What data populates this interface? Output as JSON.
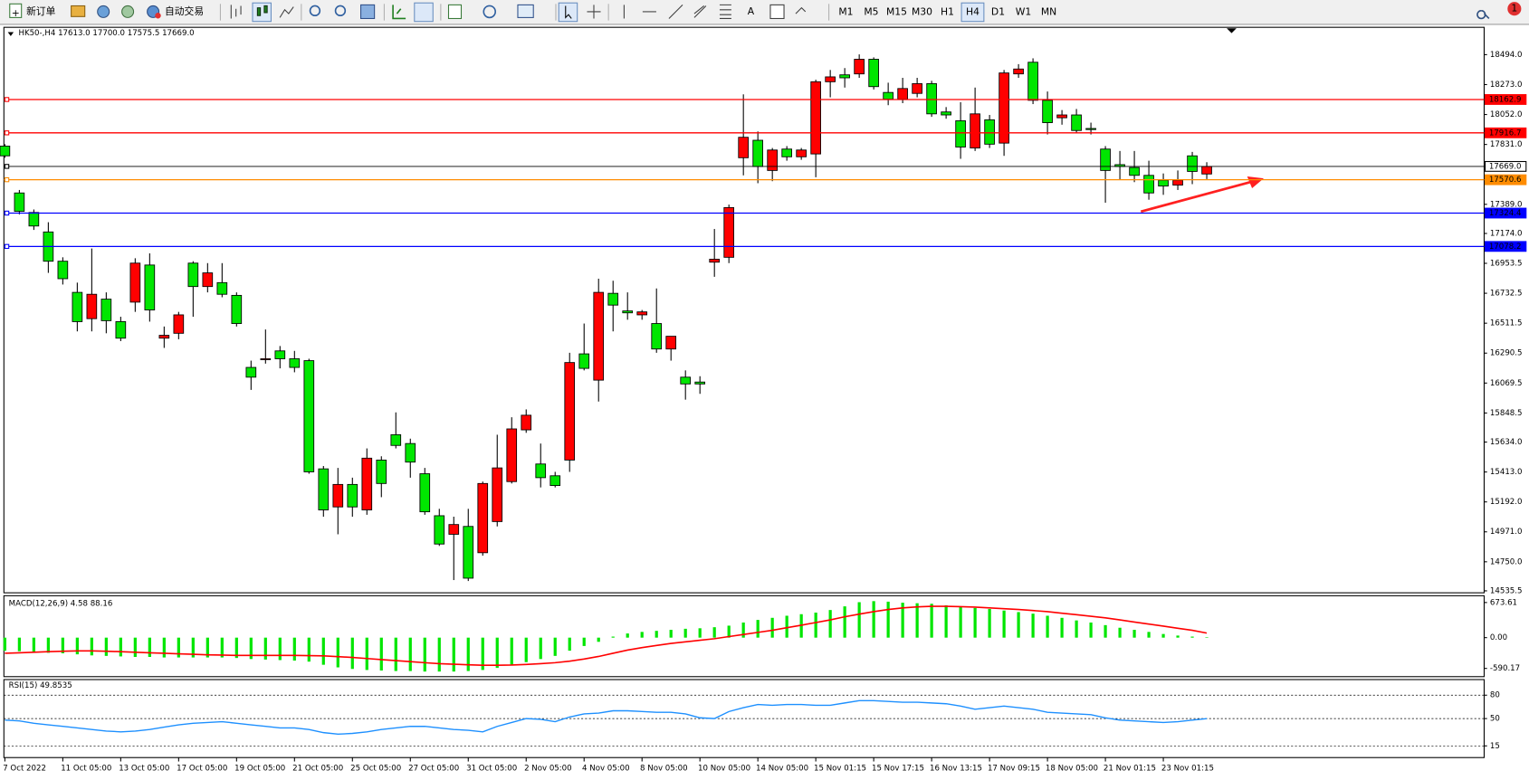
{
  "toolbar": {
    "new_order": "新订单",
    "auto_trading": "自动交易",
    "timeframes": [
      "M1",
      "M5",
      "M15",
      "M30",
      "H1",
      "H4",
      "D1",
      "W1",
      "MN"
    ],
    "active_timeframe": "H4",
    "notifications": 1
  },
  "chart_data": [
    {
      "type": "candlestick",
      "title": "HK50-,H4  17613.0 17700.0 17575.5 17669.0",
      "categories": [
        "7 Oct 2022",
        null,
        null,
        null,
        "11 Oct 05:00",
        null,
        null,
        null,
        "13 Oct 05:00",
        null,
        null,
        null,
        "17 Oct 05:00",
        null,
        null,
        null,
        "19 Oct 05:00",
        null,
        null,
        null,
        "21 Oct 05:00",
        null,
        null,
        null,
        "25 Oct 05:00",
        null,
        null,
        null,
        "27 Oct 05:00",
        null,
        null,
        null,
        "31 Oct 05:00",
        null,
        null,
        null,
        "2 Nov 05:00",
        null,
        null,
        null,
        "4 Nov 05:00",
        null,
        null,
        null,
        "8 Nov 05:00",
        null,
        null,
        null,
        "10 Nov 05:00",
        null,
        null,
        null,
        "14 Nov 05:00",
        null,
        null,
        null,
        "15 Nov 01:15",
        null,
        null,
        null,
        "15 Nov 17:15",
        null,
        null,
        null,
        "16 Nov 13:15",
        null,
        null,
        null,
        "17 Nov 09:15",
        null,
        null,
        null,
        "18 Nov 05:00",
        null,
        null,
        null,
        "21 Nov 01:15",
        null,
        null,
        null,
        "23 Nov 01:15",
        null,
        null,
        null
      ],
      "open": [
        17819,
        17473,
        17329,
        17185,
        16969,
        16739,
        16545,
        16689,
        16523,
        16667,
        16941,
        16401,
        16437,
        16955,
        16782,
        16811,
        16717,
        16185,
        16242,
        16307,
        16249,
        16235,
        15436,
        15155,
        15321,
        15133,
        15501,
        15688,
        15623,
        15400,
        15090,
        14953,
        15011,
        14817,
        15047,
        15342,
        15724,
        15472,
        15385,
        15501,
        16285,
        16091,
        16732,
        16602,
        16573,
        16509,
        16321,
        16113,
        16077,
        16962,
        16998,
        17733,
        17862,
        17639,
        17797,
        17740,
        17761,
        18294,
        18345,
        18352,
        18460,
        18215,
        18165,
        18208,
        18280,
        18071,
        18006,
        17805,
        18013,
        17841,
        18352,
        18438,
        18157,
        18028,
        18049,
        17949,
        17797,
        17682,
        17661,
        17603,
        17567,
        17531,
        17747,
        17613
      ],
      "high": [
        17833,
        17495,
        17351,
        17257,
        16998,
        16811,
        17063,
        16739,
        16559,
        16991,
        17027,
        16487,
        16595,
        16969,
        16955,
        16955,
        16739,
        16235,
        16465,
        16343,
        16307,
        16249,
        15457,
        15443,
        15371,
        15587,
        15529,
        15853,
        15659,
        15443,
        15141,
        15083,
        15141,
        15342,
        15688,
        15817,
        15875,
        15623,
        15414,
        16293,
        16509,
        16840,
        16825,
        16739,
        16609,
        16768,
        16415,
        16163,
        16120,
        17207,
        17387,
        18201,
        17927,
        17805,
        17819,
        17805,
        18309,
        18381,
        18395,
        18496,
        18474,
        18287,
        18323,
        18323,
        18301,
        18107,
        18143,
        18251,
        18049,
        18381,
        18424,
        18467,
        18222,
        18085,
        18093,
        17992,
        17819,
        17783,
        17783,
        17711,
        17617,
        17639,
        17776,
        17700
      ],
      "low": [
        17733,
        17315,
        17200,
        16883,
        16797,
        16451,
        16451,
        16437,
        16379,
        16595,
        16523,
        16329,
        16393,
        16559,
        16739,
        16703,
        16487,
        16019,
        16213,
        16178,
        16149,
        15400,
        15083,
        14953,
        15083,
        15097,
        15227,
        15587,
        15371,
        15097,
        14867,
        14615,
        14608,
        14795,
        15011,
        15328,
        15702,
        15299,
        15299,
        15414,
        16163,
        15933,
        16451,
        16537,
        16537,
        16293,
        16235,
        15947,
        15990,
        16854,
        16955,
        17603,
        17545,
        17560,
        17711,
        17718,
        17589,
        18179,
        18251,
        18323,
        18237,
        18121,
        18136,
        18179,
        18035,
        18021,
        17725,
        17783,
        17805,
        17747,
        18323,
        18129,
        17905,
        17977,
        17913,
        17905,
        17401,
        17574,
        17553,
        17423,
        17459,
        17495,
        17538,
        17575.5
      ],
      "close": [
        17747,
        17337,
        17229,
        16969,
        16840,
        16523,
        16725,
        16530,
        16401,
        16955,
        16609,
        16422,
        16573,
        16782,
        16883,
        16725,
        16509,
        16113,
        16249,
        16249,
        16185,
        15414,
        15133,
        15321,
        15155,
        15515,
        15328,
        15609,
        15486,
        15119,
        14881,
        15025,
        14629,
        15328,
        15443,
        15731,
        15832,
        15371,
        15313,
        16221,
        16178,
        16739,
        16645,
        16588,
        16595,
        16321,
        16415,
        16063,
        16063,
        16984,
        17365,
        17884,
        17668,
        17790,
        17740,
        17790,
        18294,
        18330,
        18323,
        18460,
        18258,
        18165,
        18244,
        18280,
        18057,
        18049,
        17812,
        18057,
        17833,
        18359,
        18388,
        18157,
        17992,
        18049,
        17934,
        17941,
        17639,
        17668,
        17603,
        17473,
        17524,
        17567,
        17632,
        17669
      ],
      "up_color": "#ff0000",
      "down_color": "#00e600",
      "ylim": [
        14521,
        18696
      ],
      "yticks": [
        {
          "value": 18494,
          "label": "18494.0"
        },
        {
          "value": 18273,
          "label": "18273.0"
        },
        {
          "value": 18052,
          "label": "18052.0"
        },
        {
          "value": 17831,
          "label": "17831.0"
        },
        {
          "value": 17389,
          "label": "17389.0"
        },
        {
          "value": 17174,
          "label": "17174.0"
        },
        16953.5,
        16732.5,
        16511.5,
        16290.5,
        16069.5,
        15848.5,
        {
          "value": 15634,
          "label": "15634.0"
        },
        {
          "value": 15413,
          "label": "15413.0"
        },
        {
          "value": 15192,
          "label": "15192.0"
        },
        {
          "value": 14971,
          "label": "14971.0"
        },
        {
          "value": 14750,
          "label": "14750.0"
        },
        14535.5
      ],
      "price_lines": [
        {
          "value": 18162.9,
          "color": "#ff0000"
        },
        {
          "value": 17916.7,
          "color": "#ff0000"
        },
        {
          "value": 17669,
          "label": "17669.0",
          "color": "#000000"
        },
        {
          "value": 17570.6,
          "color": "#ff8c00"
        },
        {
          "value": 17324.4,
          "color": "#0000ff"
        },
        {
          "value": 17078.2,
          "color": "#0000ff"
        }
      ]
    },
    {
      "type": "macd",
      "title": "MACD(12,26,9) 4.58 88.16",
      "histogram": [
        -250,
        -260,
        -270,
        -290,
        -300,
        -320,
        -340,
        -350,
        -360,
        -370,
        -370,
        -380,
        -380,
        -380,
        -380,
        -380,
        -390,
        -410,
        -420,
        -430,
        -440,
        -460,
        -520,
        -570,
        -600,
        -620,
        -630,
        -640,
        -640,
        -650,
        -650,
        -650,
        -640,
        -620,
        -580,
        -530,
        -470,
        -410,
        -350,
        -250,
        -160,
        -80,
        20,
        80,
        110,
        130,
        150,
        170,
        180,
        200,
        230,
        290,
        340,
        380,
        420,
        450,
        480,
        530,
        600,
        680,
        700,
        690,
        670,
        660,
        650,
        620,
        600,
        570,
        550,
        520,
        490,
        460,
        420,
        380,
        330,
        290,
        240,
        190,
        150,
        110,
        70,
        40,
        20,
        4.58
      ],
      "histogram_color": "#00e600",
      "signal": [
        -300,
        -290,
        -280,
        -270,
        -260,
        -255,
        -255,
        -260,
        -270,
        -280,
        -290,
        -300,
        -310,
        -320,
        -330,
        -335,
        -340,
        -340,
        -340,
        -340,
        -340,
        -345,
        -350,
        -365,
        -380,
        -400,
        -420,
        -440,
        -460,
        -480,
        -500,
        -510,
        -520,
        -530,
        -530,
        -525,
        -515,
        -500,
        -480,
        -450,
        -410,
        -360,
        -300,
        -240,
        -190,
        -150,
        -110,
        -80,
        -50,
        -20,
        20,
        60,
        100,
        140,
        190,
        240,
        290,
        340,
        400,
        450,
        500,
        540,
        570,
        590,
        600,
        600,
        595,
        585,
        570,
        555,
        540,
        520,
        500,
        470,
        440,
        410,
        380,
        340,
        300,
        260,
        220,
        180,
        140,
        88.16
      ],
      "signal_color": "#ff0000",
      "ylim": [
        -748,
        804
      ],
      "yticks": [
        673.61,
        {
          "value": 0,
          "label": "0.00"
        },
        -590.17
      ]
    },
    {
      "type": "line",
      "title": "RSI(15) 49.8535",
      "values": [
        48,
        47,
        44,
        42,
        40,
        38,
        36,
        34,
        33,
        34,
        36,
        39,
        42,
        44,
        45,
        46,
        44,
        42,
        40,
        38,
        38,
        36,
        32,
        30,
        31,
        33,
        36,
        38,
        40,
        40,
        38,
        36,
        35,
        33,
        40,
        45,
        50,
        49,
        46,
        52,
        56,
        57,
        60,
        60,
        59,
        58,
        58,
        56,
        51,
        50,
        59,
        64,
        68,
        67,
        68,
        68,
        67,
        67,
        70,
        73,
        73,
        72,
        71,
        71,
        70,
        69,
        66,
        62,
        64,
        66,
        64,
        62,
        58,
        57,
        56,
        55,
        51,
        48,
        47,
        46,
        45,
        46,
        48,
        49.8535
      ],
      "color": "#1e90ff",
      "ylim": [
        0,
        100
      ],
      "yticks": [
        80,
        50,
        15
      ],
      "grid": true
    }
  ]
}
